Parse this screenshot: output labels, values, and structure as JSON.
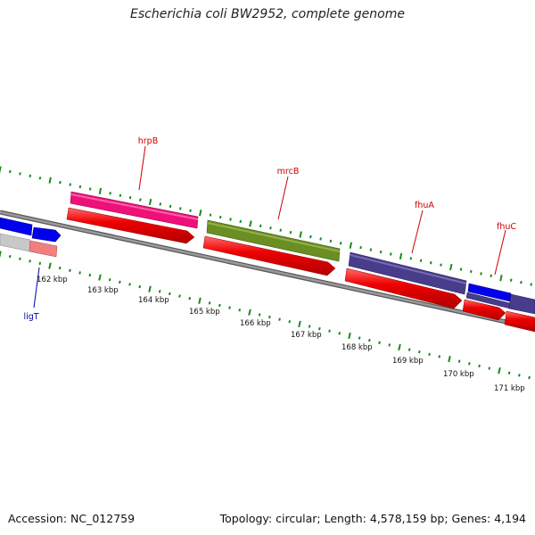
{
  "map": {
    "title": "Escherichia coli BW2952, complete genome",
    "accession": "Accession: NC_012759",
    "summary": "Topology: circular; Length: 4,578,159 bp; Genes: 4,194",
    "kbp_labels": [
      "162 kbp",
      "163 kbp",
      "164 kbp",
      "165 kbp",
      "166 kbp",
      "167 kbp",
      "168 kbp",
      "169 kbp",
      "170 kbp",
      "171 kbp"
    ],
    "genes": [
      {
        "name": "hrpB",
        "color": "#ee1177",
        "track": "outer-bar",
        "strand": "forward",
        "color_cds": "#e60000"
      },
      {
        "name": "mrcB",
        "color": "#6b8e23",
        "track": "outer-bar",
        "strand": "forward",
        "color_cds": "#e60000"
      },
      {
        "name": "fhuA",
        "color": "#483d8b",
        "track": "outer-bar",
        "strand": "forward",
        "color_cds": "#e60000"
      },
      {
        "name": "fhuC",
        "color": "#0000ee",
        "track": "outer-bar",
        "strand": "forward",
        "color_cds": "#e60000"
      },
      {
        "name": "ligT",
        "color": "#0000ee",
        "track": "inner-bar",
        "strand": "reverse",
        "color_cds": "#f08080"
      }
    ],
    "colors": {
      "backbone": "#808080",
      "tick": "#1a8a1a",
      "label_red": "#cc0000",
      "label_blue": "#0000aa"
    }
  }
}
